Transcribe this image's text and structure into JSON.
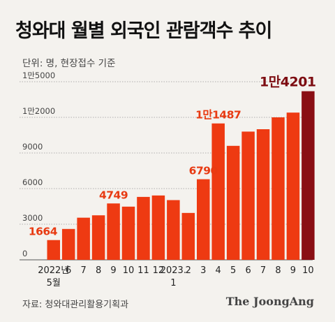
{
  "title": "청와대 월별 외국인 관람객수 추이",
  "subtitle": "단위: 명, 현장접수 기준",
  "source": "자료: 청와대관리활용기획과",
  "brand": "The JoongAng",
  "colors": {
    "bar": "#ee3a12",
    "bar_highlight": "#8a0f14",
    "label": "#e83a12",
    "label_highlight": "#7d0d12",
    "grid": "#999999"
  },
  "chart_data": {
    "type": "bar",
    "categories": [
      "2022년 5월",
      "6",
      "7",
      "8",
      "9",
      "10",
      "11",
      "12",
      "2023. 1",
      "2",
      "3",
      "4",
      "5",
      "6",
      "7",
      "8",
      "9",
      "10"
    ],
    "values": [
      1664,
      2600,
      3550,
      3750,
      4749,
      4480,
      5300,
      5420,
      5030,
      3950,
      6790,
      11487,
      9600,
      10800,
      11000,
      12000,
      12400,
      14201
    ],
    "y_ticks": [
      0,
      3000,
      6000,
      9000,
      12000,
      15000
    ],
    "y_tick_labels": [
      "0",
      "3000",
      "6000",
      "9000",
      "1만2000",
      "1만5000"
    ],
    "ylim": [
      0,
      15000
    ],
    "data_labels": [
      {
        "index": 0,
        "text": "1664"
      },
      {
        "index": 4,
        "text": "4749"
      },
      {
        "index": 10,
        "text": "6790"
      },
      {
        "index": 11,
        "text": "1만1487"
      },
      {
        "index": 17,
        "text": "1만4201"
      }
    ],
    "highlight_index": 17
  }
}
